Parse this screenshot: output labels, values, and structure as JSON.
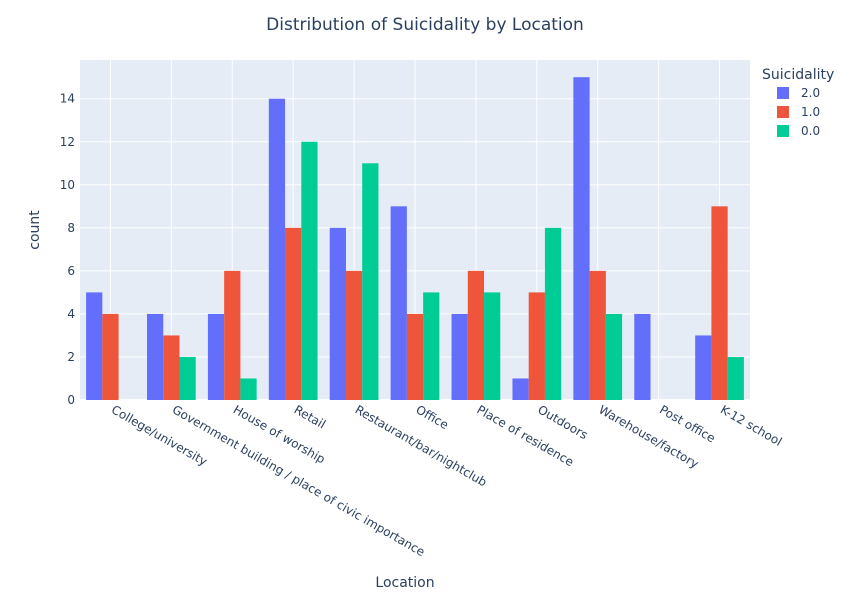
{
  "chart_data": {
    "type": "bar",
    "title": "Distribution of Suicidality by Location",
    "xlabel": "Location",
    "ylabel": "count",
    "ylim": [
      0,
      15.8
    ],
    "yticks": [
      0,
      2,
      4,
      6,
      8,
      10,
      12,
      14
    ],
    "grid": true,
    "legend_position": "top-right",
    "legend_title": "Suicidality",
    "categories": [
      "College/university",
      "Government building /  place of civic importance",
      "House of worship",
      "Retail",
      "Restaurant/bar/nightclub",
      "Office",
      "Place of residence",
      "Outdoors",
      "Warehouse/factory",
      "Post office",
      "K-12 school"
    ],
    "series": [
      {
        "name": "2.0",
        "color": "#636efa",
        "values": [
          5,
          4,
          4,
          14,
          8,
          9,
          4,
          1,
          15,
          4,
          3
        ]
      },
      {
        "name": "1.0",
        "color": "#ef553b",
        "values": [
          4,
          3,
          6,
          8,
          6,
          4,
          6,
          5,
          6,
          0,
          9
        ]
      },
      {
        "name": "0.0",
        "color": "#00cc96",
        "values": [
          0,
          2,
          1,
          12,
          11,
          5,
          5,
          8,
          4,
          0,
          2
        ]
      }
    ],
    "background_color": "#e5ecf6",
    "gridline_color": "#ffffff",
    "text_color": "#2a3f5f"
  }
}
